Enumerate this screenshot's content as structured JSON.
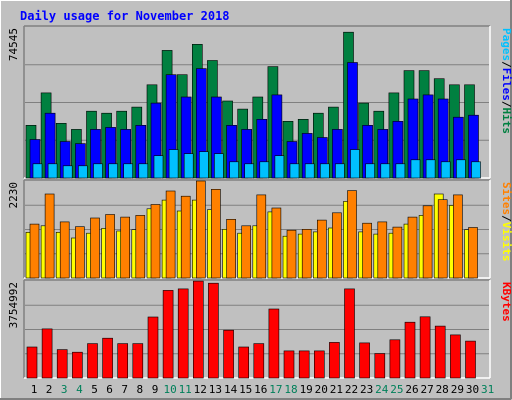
{
  "chart_data": [
    {
      "type": "bar",
      "title": "Daily usage for November 2018",
      "categories": [
        "1",
        "2",
        "3",
        "4",
        "5",
        "6",
        "7",
        "8",
        "9",
        "10",
        "11",
        "12",
        "13",
        "14",
        "15",
        "16",
        "17",
        "18",
        "19",
        "20",
        "21",
        "22",
        "23",
        "24",
        "25",
        "26",
        "27",
        "28",
        "29",
        "30",
        "31"
      ],
      "weekend_days": [
        "3",
        "4",
        "10",
        "11",
        "17",
        "18",
        "24",
        "25",
        "31"
      ],
      "ylim": [
        0,
        74545
      ],
      "ymax_label": "74545",
      "ylabel_parts": [
        "Pages",
        "/",
        "Files",
        "/",
        "Hits"
      ],
      "series": [
        {
          "name": "Hits",
          "color": "#008040",
          "values": [
            26000,
            42000,
            27000,
            24000,
            33000,
            32000,
            33000,
            35000,
            46000,
            63000,
            51000,
            66000,
            58000,
            38000,
            34000,
            40000,
            55000,
            28000,
            29000,
            32000,
            35000,
            72000,
            37000,
            33000,
            42000,
            53000,
            53000,
            49000,
            46000,
            46000,
            0
          ]
        },
        {
          "name": "Files",
          "color": "#0000ff",
          "values": [
            19000,
            32000,
            18000,
            17000,
            24000,
            25000,
            24000,
            26000,
            37000,
            51000,
            40000,
            54000,
            40000,
            26000,
            24000,
            29000,
            41000,
            18000,
            22000,
            20000,
            24000,
            57000,
            26000,
            24000,
            28000,
            39000,
            41000,
            39000,
            30000,
            31000,
            0
          ]
        },
        {
          "name": "Pages",
          "color": "#00c0ff",
          "values": [
            7000,
            7000,
            6000,
            6000,
            7000,
            7000,
            7000,
            7000,
            11000,
            14000,
            12000,
            13000,
            12000,
            8000,
            7000,
            8000,
            11000,
            7000,
            7000,
            7000,
            7000,
            14000,
            7000,
            7000,
            7000,
            9000,
            9000,
            8000,
            9000,
            8000,
            0
          ]
        }
      ]
    },
    {
      "type": "bar",
      "categories": [
        "1",
        "2",
        "3",
        "4",
        "5",
        "6",
        "7",
        "8",
        "9",
        "10",
        "11",
        "12",
        "13",
        "14",
        "15",
        "16",
        "17",
        "18",
        "19",
        "20",
        "21",
        "22",
        "23",
        "24",
        "25",
        "26",
        "27",
        "28",
        "29",
        "30",
        "31"
      ],
      "ylim": [
        0,
        2230
      ],
      "ymax_label": "2230",
      "ylabel_parts": [
        "Sites",
        "/",
        "Visits"
      ],
      "series": [
        {
          "name": "Visits",
          "color": "#ffff00",
          "values": [
            1050,
            1200,
            1050,
            920,
            1030,
            1140,
            1080,
            1110,
            1590,
            1790,
            1540,
            1790,
            1570,
            1120,
            1030,
            1200,
            1520,
            960,
            1010,
            1060,
            1150,
            1760,
            1060,
            1010,
            1030,
            1240,
            1440,
            1930,
            1670,
            1110,
            0
          ]
        },
        {
          "name": "Sites",
          "color": "#ff8000",
          "values": [
            1240,
            1930,
            1290,
            1180,
            1380,
            1460,
            1400,
            1440,
            1690,
            2000,
            1880,
            2230,
            2040,
            1350,
            1200,
            1910,
            1610,
            1100,
            1120,
            1330,
            1500,
            2010,
            1260,
            1290,
            1170,
            1400,
            1660,
            1800,
            1910,
            1160,
            0
          ]
        }
      ]
    },
    {
      "type": "bar",
      "categories": [
        "1",
        "2",
        "3",
        "4",
        "5",
        "6",
        "7",
        "8",
        "9",
        "10",
        "11",
        "12",
        "13",
        "14",
        "15",
        "16",
        "17",
        "18",
        "19",
        "20",
        "21",
        "22",
        "23",
        "24",
        "25",
        "26",
        "27",
        "28",
        "29",
        "30",
        "31"
      ],
      "ylim": [
        0,
        3754992
      ],
      "ymax_label": "3754992",
      "ylabel_parts": [
        "KBytes"
      ],
      "series": [
        {
          "name": "KBytes",
          "color": "#ff0000",
          "values": [
            1200000,
            1900000,
            1100000,
            1000000,
            1330000,
            1540000,
            1330000,
            1330000,
            2360000,
            3390000,
            3450000,
            3750000,
            3670000,
            1850000,
            1200000,
            1330000,
            2670000,
            1050000,
            1050000,
            1050000,
            1380000,
            3450000,
            1360000,
            950000,
            1480000,
            2160000,
            2370000,
            2010000,
            1670000,
            1430000,
            0
          ]
        }
      ]
    }
  ]
}
